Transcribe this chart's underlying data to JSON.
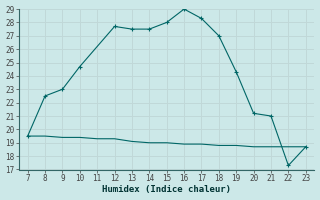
{
  "xlabel": "Humidex (Indice chaleur)",
  "bg_color": "#cce8e8",
  "grid_color": "#b0d4d4",
  "line_color": "#006666",
  "x_upper": [
    7,
    8,
    9,
    10,
    12,
    13,
    14,
    15,
    16,
    17,
    18,
    19,
    20,
    21,
    22,
    23
  ],
  "y_upper": [
    19.5,
    22.5,
    23.0,
    24.7,
    27.7,
    27.5,
    27.5,
    28.0,
    29.0,
    28.3,
    27.0,
    24.3,
    21.2,
    21.0,
    17.3,
    18.7
  ],
  "x_lower": [
    7,
    8,
    9,
    10,
    11,
    12,
    13,
    14,
    15,
    16,
    17,
    18,
    19,
    20,
    21,
    22,
    23
  ],
  "y_lower": [
    19.5,
    19.5,
    19.4,
    19.4,
    19.3,
    19.3,
    19.1,
    19.0,
    19.0,
    18.9,
    18.9,
    18.8,
    18.8,
    18.7,
    18.7,
    18.7,
    18.7
  ],
  "xlim": [
    6.5,
    23.5
  ],
  "ylim": [
    17,
    29
  ],
  "xticks": [
    7,
    8,
    9,
    10,
    11,
    12,
    13,
    14,
    15,
    16,
    17,
    18,
    19,
    20,
    21,
    22,
    23
  ],
  "yticks": [
    17,
    18,
    19,
    20,
    21,
    22,
    23,
    24,
    25,
    26,
    27,
    28,
    29
  ],
  "tick_fontsize": 5.5,
  "xlabel_fontsize": 6.5,
  "xlabel_fontweight": "bold"
}
